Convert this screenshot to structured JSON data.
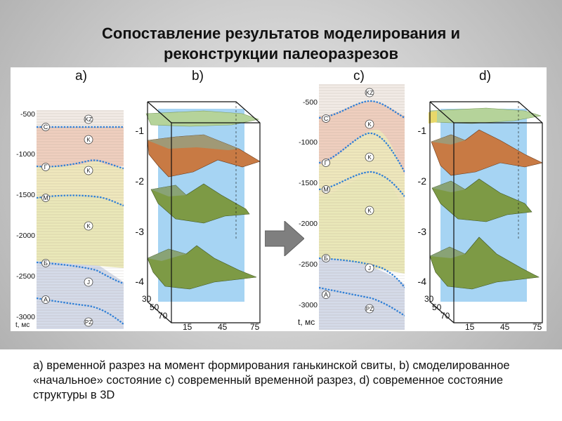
{
  "title": {
    "line1": "Сопоставление результатов моделирования и",
    "line2": "реконструкции палеоразрезов"
  },
  "panels": {
    "a": "a)",
    "b": "b)",
    "c": "c)",
    "d": "d)"
  },
  "section_a": {
    "depth_ticks": [
      "-500",
      "-1000",
      "-1500",
      "-2000",
      "-2500",
      "-3000"
    ],
    "axis_label": "t, мс",
    "horizon_markers": [
      "С",
      "Г",
      "М",
      "Б",
      "А"
    ],
    "unit_markers": [
      "KZ",
      "K",
      "K",
      "K",
      "J",
      "PZ"
    ]
  },
  "section_c": {
    "depth_ticks": [
      "-500",
      "-1000",
      "-1500",
      "-2000",
      "-2500",
      "-3000"
    ],
    "axis_label": "t, мс",
    "horizon_markers": [
      "С",
      "Г",
      "М",
      "Б",
      "А"
    ],
    "unit_markers": [
      "KZ",
      "K",
      "K",
      "K",
      "J",
      "PZ"
    ]
  },
  "model_3d": {
    "z_ticks": [
      "-1",
      "-2",
      "-3",
      "-4"
    ],
    "y_ticks": [
      "30",
      "50",
      "70"
    ],
    "x_ticks": [
      "15",
      "45",
      "75"
    ]
  },
  "caption": "а) временной разрез на момент формирования ганькинской свиты, b) смоделированное «начальное» состояние с) современный временной разрез, d) современное состояние структуры в 3D",
  "colors": {
    "horizon_line": "#2f7fd6",
    "plane": "#9fd0f2",
    "surface_top": "#a9c98a",
    "surface_orange": "#c87a44",
    "surface_green": "#7d9a45"
  }
}
